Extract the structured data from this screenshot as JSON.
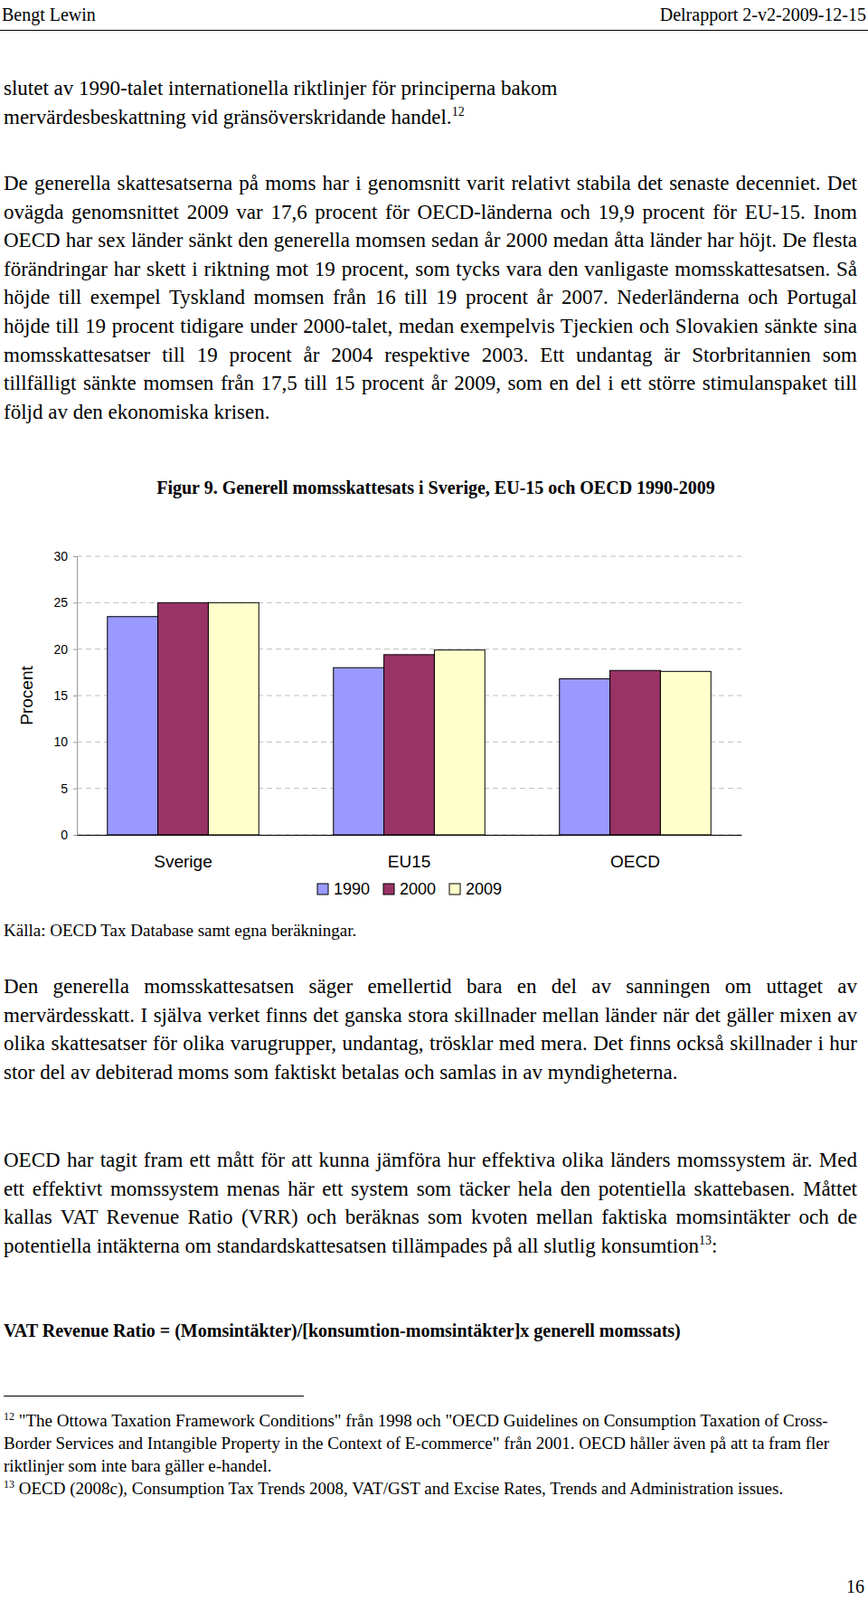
{
  "header": {
    "author": "Bengt Lewin",
    "report": "Delrapport 2-v2-2009-12-15"
  },
  "paragraphs_before": [
    {
      "lines": [
        "slutet av 1990-talet internationella riktlinjer för principerna bakom",
        "mervärdesbeskattning vid gränsöverskridande handel."
      ],
      "footnote_ref": "12"
    },
    {
      "text": "De generella skattesatserna på moms har i genomsnitt varit relativt stabila det senaste decenniet. Det ovägda genomsnittet 2009 var 17,6 procent för OECD-länderna och 19,9 procent för EU-15. Inom OECD har sex länder sänkt den generella momsen sedan år 2000 medan åtta länder har höjt. De flesta förändringar har skett i riktning mot 19 procent, som tycks vara den vanligaste momsskattesatsen. Så höjde till exempel Tyskland momsen från 16 till 19 procent år 2007. Nederländerna och Portugal höjde till 19 procent tidigare under 2000-talet, medan exempelvis Tjeckien och Slovakien sänkte sina momsskattesatser till 19 procent år 2004 respektive 2003. Ett undantag är Storbritannien som tillfälligt sänkte momsen från 17,5 till 15 procent år 2009, som en del i ett större stimulanspaket till följd av den ekonomiska krisen."
    }
  ],
  "chart_data": {
    "type": "bar",
    "title": "Figur 9. Generell momsskattesats i Sverige, EU-15 och OECD 1990-2009",
    "y_label": "Procent",
    "categories": [
      "Sverige",
      "EU15",
      "OECD"
    ],
    "series": [
      {
        "name": "1990",
        "color": "#9999ff",
        "values": [
          23.5,
          18.0,
          16.8
        ]
      },
      {
        "name": "2000",
        "color": "#993366",
        "values": [
          25,
          19.4,
          17.7
        ]
      },
      {
        "name": "2009",
        "color": "#ffffcc",
        "values": [
          25,
          19.9,
          17.6
        ]
      }
    ],
    "ylim": [
      0,
      30
    ],
    "yticks": [
      0,
      5,
      10,
      15,
      20,
      25,
      30
    ],
    "grid": true,
    "legend": "bottom"
  },
  "figure_source": "Källa: OECD Tax Database samt egna beräkningar.",
  "paragraphs_after": [
    {
      "text": "Den generella momsskattesatsen säger emellertid bara en del av sanningen om uttaget av mervärdesskatt. I själva verket finns det ganska stora skillnader mellan länder när det gäller mixen av olika skattesatser för olika varugrupper, undantag, trösklar med mera. Det finns också skillnader i hur stor del av debiterad moms som faktiskt betalas och samlas in av myndigheterna."
    },
    {
      "text": "OECD har tagit fram ett mått för att kunna jämföra hur effektiva olika länders momssystem är. Med ett effektivt momssystem menas här ett system som täcker hela den potentiella skattebasen. Måttet kallas VAT Revenue Ratio (VRR) och beräknas som kvoten mellan faktiska momsintäkter och de potentiella intäkterna om standardskattesatsen tillämpades på all slutlig konsumtion",
      "footnote_ref": "13",
      "after": ":"
    }
  ],
  "formula": "VAT Revenue Ratio = (Momsintäkter)/[konsumtion-momsintäkter]x generell momssats)",
  "footnotes": [
    {
      "number": "12",
      "text": "\"The Ottowa Taxation Framework Conditions\" från 1998 och \"OECD Guidelines on Consumption Taxation of Cross-Border Services and Intangible Property in the Context of E-commerce\" från 2001. OECD håller även på att ta fram fler riktlinjer som inte bara gäller e-handel."
    },
    {
      "number": "13",
      "text": "OECD (2008c), Consumption Tax Trends 2008, VAT/GST and Excise Rates, Trends and Administration issues."
    }
  ],
  "page_number": "16"
}
